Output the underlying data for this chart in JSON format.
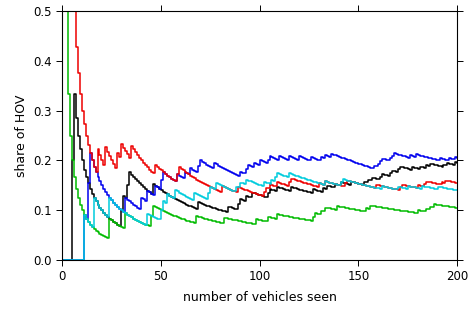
{
  "xlabel": "number of vehicles seen",
  "ylabel": "share of HOV",
  "xlim": [
    0,
    200
  ],
  "ylim": [
    0,
    0.5
  ],
  "yticks": [
    0.0,
    0.1,
    0.2,
    0.3,
    0.4,
    0.5
  ],
  "xticks": [
    0,
    50,
    100,
    150,
    200
  ],
  "colors": [
    "black",
    "#0000EE",
    "#00BB00",
    "#EE0000",
    "#00CCDD"
  ],
  "true_shares": [
    0.19,
    0.19,
    0.13,
    0.155,
    0.15
  ],
  "seeds": [
    3,
    17,
    25,
    8,
    40
  ],
  "n_points": 200,
  "background_color": "#FFFFFF",
  "linewidth": 1.1,
  "figsize": [
    4.74,
    3.16
  ],
  "dpi": 100
}
